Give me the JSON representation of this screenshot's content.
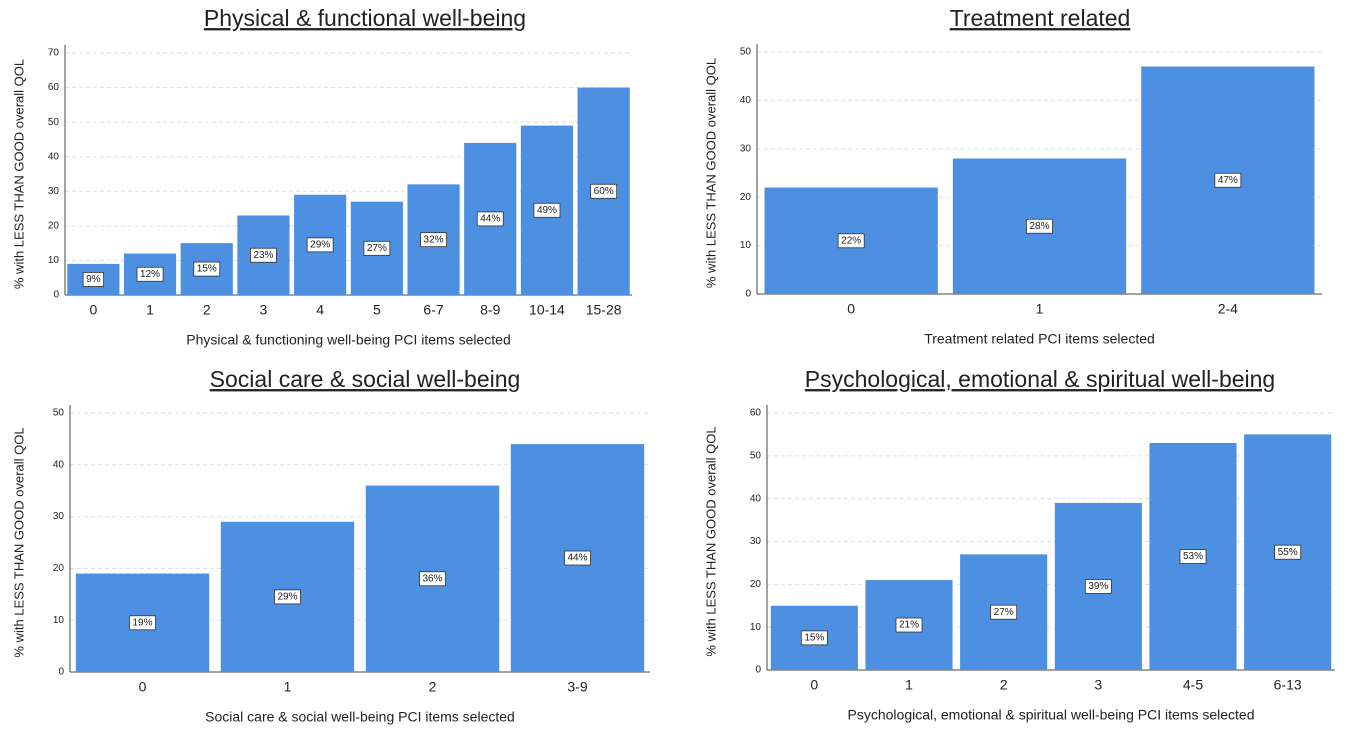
{
  "chart_data": [
    {
      "type": "bar",
      "title": "Physical & functional well-being",
      "x_label": "Physical & functioning well-being PCI items selected",
      "y_label": "% with LESS THAN GOOD overall QOL",
      "categories": [
        "0",
        "1",
        "2",
        "3",
        "4",
        "5",
        "6-7",
        "8-9",
        "10-14",
        "15-28"
      ],
      "values": [
        9,
        12,
        15,
        23,
        29,
        27,
        32,
        44,
        49,
        60
      ],
      "value_labels": [
        "9%",
        "12%",
        "15%",
        "23%",
        "29%",
        "27%",
        "32%",
        "44%",
        "49%",
        "60%"
      ],
      "color": "#4d8fe0",
      "ylim": [
        0,
        70
      ],
      "yticks": [
        0,
        10,
        20,
        30,
        40,
        50,
        60,
        70
      ],
      "grid": true
    },
    {
      "type": "bar",
      "title": "Treatment  related",
      "x_label": "Treatment related PCI items selected",
      "y_label": "% with LESS THAN GOOD overall QOL",
      "categories": [
        "0",
        "1",
        "2-4"
      ],
      "values": [
        22,
        28,
        47
      ],
      "value_labels": [
        "22%",
        "28%",
        "47%"
      ],
      "color": "#4d8fe0",
      "ylim": [
        0,
        50
      ],
      "yticks": [
        0,
        10,
        20,
        30,
        40,
        50
      ],
      "grid": true
    },
    {
      "type": "bar",
      "title": "Social care & social well-being",
      "x_label": "Social care & social well-being PCI items selected",
      "y_label": "% with LESS THAN GOOD overall QOL",
      "categories": [
        "0",
        "1",
        "2",
        "3-9"
      ],
      "values": [
        19,
        29,
        36,
        44
      ],
      "value_labels": [
        "19%",
        "29%",
        "36%",
        "44%"
      ],
      "color": "#4d8fe0",
      "ylim": [
        0,
        50
      ],
      "yticks": [
        0,
        10,
        20,
        30,
        40,
        50
      ],
      "grid": true
    },
    {
      "type": "bar",
      "title": "Psychological, emotional & spiritual well-being",
      "x_label": "Psychological, emotional & spiritual well-being PCI items selected",
      "y_label": "% with LESS THAN GOOD overall QOL",
      "categories": [
        "0",
        "1",
        "2",
        "3",
        "4-5",
        "6-13"
      ],
      "values": [
        15,
        21,
        27,
        39,
        53,
        55
      ],
      "value_labels": [
        "15%",
        "21%",
        "27%",
        "39%",
        "53%",
        "55%"
      ],
      "color": "#4d8fe0",
      "ylim": [
        0,
        60
      ],
      "yticks": [
        0,
        10,
        20,
        30,
        40,
        50,
        60
      ],
      "grid": true
    }
  ]
}
